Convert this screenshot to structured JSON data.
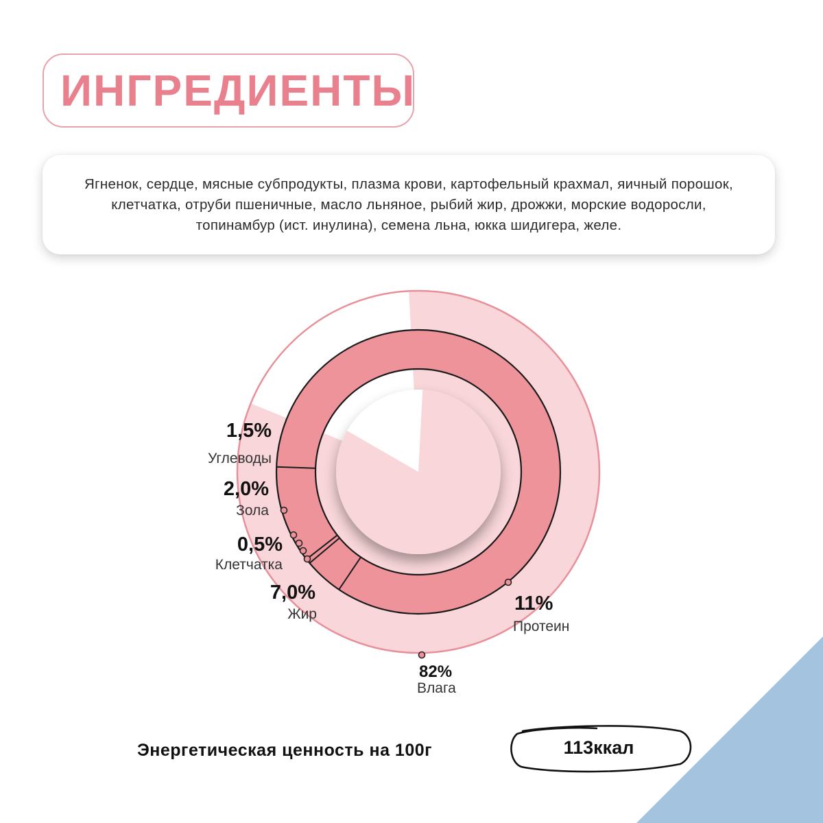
{
  "title": "ИНГРЕДИЕНТЫ",
  "ingredients": "Ягненок, сердце, мясные субпродукты, плазма крови, картофельный крахмал, яичный порошок, клетчатка, отруби пшеничные,  масло льняное, рыбий жир, дрожжи, морские водоросли, топинамбур (ист. инулина), семена льна, юкка шидигера, желе.",
  "energy": {
    "label": "Энергетическая ценность на 100г",
    "value": "113ккал"
  },
  "colors": {
    "title": "#e8818d",
    "light_pink": "#f8d6d9",
    "mid_pink": "#ef939b",
    "outline": "#e79099",
    "accent_corner": "#a4c3df"
  },
  "chart_data": {
    "type": "pie",
    "title": "",
    "outer_ring": {
      "items": [
        {
          "value": "82%",
          "label": "Влага",
          "share": 82
        }
      ]
    },
    "inner_ring": {
      "items": [
        {
          "value": "11%",
          "label": "Протеин",
          "share": 11
        },
        {
          "value": "7,0%",
          "label": "Жир",
          "share": 7.0
        },
        {
          "value": "0,5%",
          "label": "Клетчатка",
          "share": 0.5
        },
        {
          "value": "2,0%",
          "label": "Зола",
          "share": 2.0
        },
        {
          "value": "1,5%",
          "label": "Углеводы",
          "share": 1.5
        }
      ]
    }
  }
}
